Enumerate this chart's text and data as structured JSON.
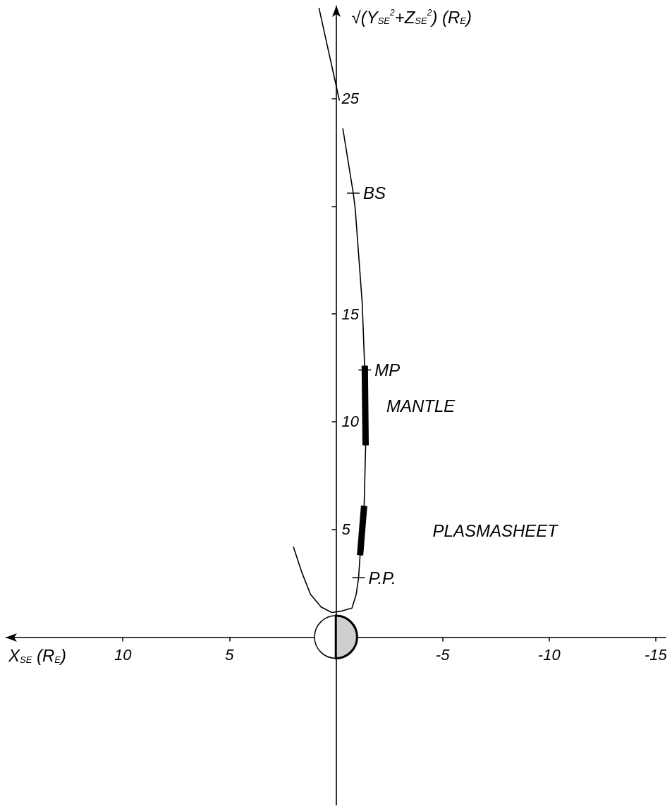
{
  "chart_data": {
    "type": "line",
    "xlabel": "X$_{SE}$ (R$_{E}$)",
    "ylabel": "√(Y$_{SE}$$^{2}$+Z$_{SE}$$^{2}$) (R$_{E}$)",
    "xlim": [
      15.5,
      -15.5
    ],
    "xticks": [
      10,
      5,
      -5,
      -10,
      -15
    ],
    "ylim": [
      -7.8,
      29.3
    ],
    "yticks": [
      5,
      10,
      15,
      {
        "value": 20,
        "label": null
      },
      25
    ],
    "grid": false,
    "legend": false,
    "marker": "none",
    "line_style": "solid",
    "series": [
      {
        "color": "#000000",
        "x": [
          2.0,
          1.6,
          1.2,
          0.7,
          0.2,
          -0.2,
          -0.75,
          -0.95,
          -1.06,
          -1.13,
          -1.32,
          -1.39,
          -1.35,
          -1.23,
          -0.9,
          -0.81,
          -0.32
        ],
        "values": [
          4.2,
          3.0,
          2.0,
          1.4,
          1.15,
          1.2,
          1.35,
          2.0,
          2.76,
          3.8,
          6.1,
          8.85,
          12.4,
          15.5,
          19.9,
          20.6,
          23.6
        ]
      },
      {
        "color": "#000000",
        "x": [
          -0.16,
          0.8
        ],
        "values": [
          24.9,
          29.2
        ]
      },
      {
        "name": "MANTLE",
        "color": "#000000",
        "x": [
          -1.35,
          -1.39
        ],
        "values": [
          12.6,
          8.9
        ]
      },
      {
        "name": "PLASMASHEET",
        "color": "#000000",
        "x": [
          -1.32,
          -1.13
        ],
        "values": [
          6.1,
          3.8
        ]
      }
    ],
    "annotations": [
      {
        "text": "BS",
        "x": -0.81,
        "y": 20.6
      },
      {
        "text": "MP",
        "x": -1.35,
        "y": 12.4
      },
      {
        "text": "P.P.",
        "x": -1.06,
        "y": 2.76
      }
    ]
  }
}
